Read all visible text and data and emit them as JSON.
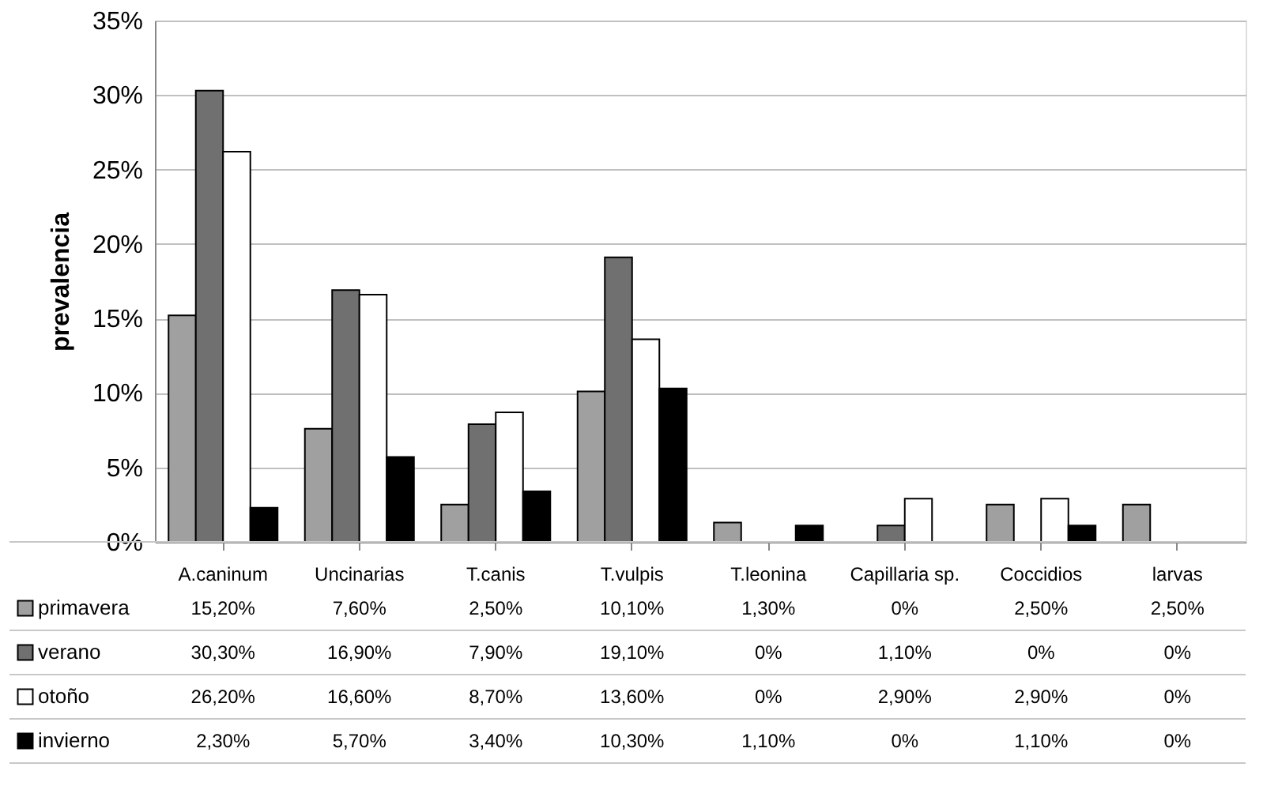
{
  "chart_data": {
    "type": "bar",
    "ylabel": "prevalencia",
    "categories": [
      "A.caninum",
      "Uncinarias",
      "T.canis",
      "T.vulpis",
      "T.leonina",
      "Capillaria sp.",
      "Coccidios",
      "larvas"
    ],
    "series": [
      {
        "name": "primavera",
        "color": "#a0a0a0",
        "values": [
          15.2,
          7.6,
          2.5,
          10.1,
          1.3,
          0,
          2.5,
          2.5
        ],
        "value_labels": [
          "15,20%",
          "7,60%",
          "2,50%",
          "10,10%",
          "1,30%",
          "0%",
          "2,50%",
          "2,50%"
        ]
      },
      {
        "name": "verano",
        "color": "#707070",
        "values": [
          30.3,
          16.9,
          7.9,
          19.1,
          0,
          1.1,
          0,
          0
        ],
        "value_labels": [
          "30,30%",
          "16,90%",
          "7,90%",
          "19,10%",
          "0%",
          "1,10%",
          "0%",
          "0%"
        ]
      },
      {
        "name": "otoño",
        "color": "#ffffff",
        "values": [
          26.2,
          16.6,
          8.7,
          13.6,
          0,
          2.9,
          2.9,
          0
        ],
        "value_labels": [
          "26,20%",
          "16,60%",
          "8,70%",
          "13,60%",
          "0%",
          "2,90%",
          "2,90%",
          "0%"
        ]
      },
      {
        "name": "invierno",
        "color": "#000000",
        "values": [
          2.3,
          5.7,
          3.4,
          10.3,
          1.1,
          0,
          1.1,
          0
        ],
        "value_labels": [
          "2,30%",
          "5,70%",
          "3,40%",
          "10,30%",
          "1,10%",
          "0%",
          "1,10%",
          "0%"
        ]
      }
    ],
    "ylim": [
      0,
      35
    ],
    "yticks": [
      {
        "value": 0,
        "label": "0%"
      },
      {
        "value": 5,
        "label": "5%"
      },
      {
        "value": 10,
        "label": "10%"
      },
      {
        "value": 15,
        "label": "15%"
      },
      {
        "value": 20,
        "label": "20%"
      },
      {
        "value": 25,
        "label": "25%"
      },
      {
        "value": 30,
        "label": "30%"
      },
      {
        "value": 35,
        "label": "35%"
      }
    ],
    "grid": "y",
    "legend": "bottom"
  }
}
